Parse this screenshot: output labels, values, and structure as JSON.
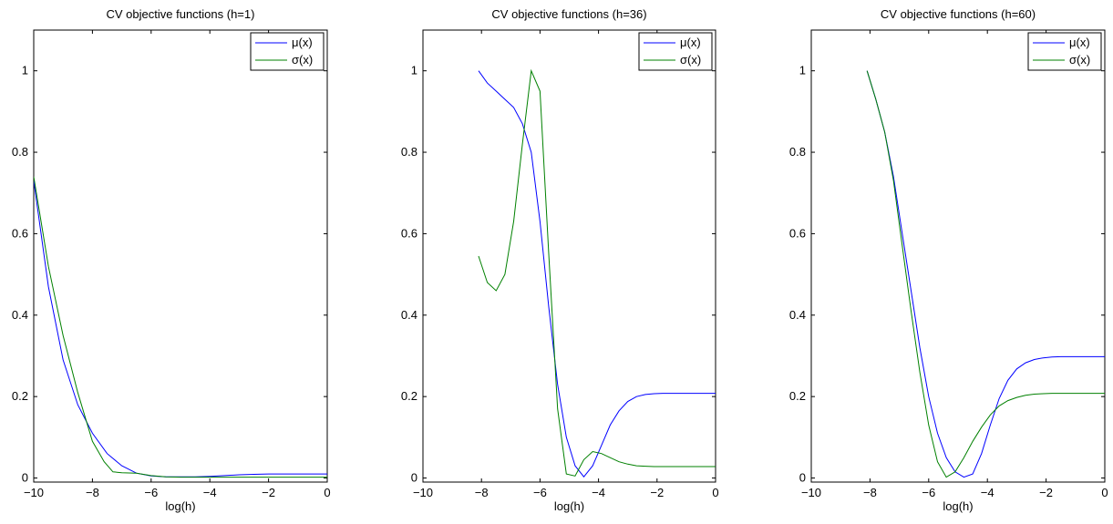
{
  "figure": {
    "colors": {
      "mu": "#0000ff",
      "sigma": "#008000",
      "axes": "#000000",
      "background": "#ffffff"
    }
  },
  "chart_data": [
    {
      "type": "line",
      "title": "CV objective functions (h=1)",
      "xlabel": "log(h)",
      "ylabel": "",
      "xlim": [
        -10,
        0
      ],
      "ylim": [
        -0.01,
        1.1
      ],
      "xticks": [
        -10,
        -8,
        -6,
        -4,
        -2,
        0
      ],
      "xtick_labels": [
        "−10",
        "−8",
        "−6",
        "−4",
        "−2",
        "0"
      ],
      "yticks": [
        0,
        0.2,
        0.4,
        0.6,
        0.8,
        1
      ],
      "ytick_labels": [
        "0",
        "0.2",
        "0.4",
        "0.6",
        "0.8",
        "1"
      ],
      "legend": {
        "position": "top-right",
        "entries": [
          "μ(x)",
          "σ(x)"
        ]
      },
      "series": [
        {
          "name": "μ(x)",
          "color": "#0000ff",
          "x": [
            -10,
            -9.5,
            -9,
            -8.5,
            -8,
            -7.5,
            -7,
            -6.5,
            -6,
            -5.5,
            -5,
            -4.5,
            -4,
            -3.5,
            -3,
            -2.5,
            -2,
            -1.5,
            -1,
            -0.5,
            0
          ],
          "y": [
            0.73,
            0.47,
            0.29,
            0.18,
            0.11,
            0.06,
            0.03,
            0.012,
            0.005,
            0.003,
            0.003,
            0.003,
            0.004,
            0.006,
            0.008,
            0.009,
            0.01,
            0.01,
            0.01,
            0.01,
            0.01
          ]
        },
        {
          "name": "σ(x)",
          "color": "#008000",
          "x": [
            -10,
            -9.5,
            -9,
            -8.5,
            -8,
            -7.6,
            -7.3,
            -7,
            -6.5,
            -6,
            -5.5,
            -5,
            -4.5,
            -4,
            -3.5,
            -3,
            -2.5,
            -2,
            -1.5,
            -1,
            -0.5,
            0
          ],
          "y": [
            0.74,
            0.52,
            0.35,
            0.21,
            0.09,
            0.04,
            0.015,
            0.013,
            0.012,
            0.006,
            0.003,
            0.002,
            0.002,
            0.002,
            0.002,
            0.002,
            0.002,
            0.002,
            0.002,
            0.002,
            0.002,
            0.002
          ]
        }
      ]
    },
    {
      "type": "line",
      "title": "CV objective functions (h=36)",
      "xlabel": "log(h)",
      "ylabel": "",
      "xlim": [
        -10,
        0
      ],
      "ylim": [
        -0.01,
        1.1
      ],
      "xticks": [
        -10,
        -8,
        -6,
        -4,
        -2,
        0
      ],
      "xtick_labels": [
        "−10",
        "−8",
        "−6",
        "−4",
        "−2",
        "0"
      ],
      "yticks": [
        0,
        0.2,
        0.4,
        0.6,
        0.8,
        1
      ],
      "ytick_labels": [
        "0",
        "0.2",
        "0.4",
        "0.6",
        "0.8",
        "1"
      ],
      "legend": {
        "position": "top-right",
        "entries": [
          "μ(x)",
          "σ(x)"
        ]
      },
      "series": [
        {
          "name": "μ(x)",
          "color": "#0000ff",
          "x": [
            -8.1,
            -7.8,
            -7.5,
            -7.2,
            -6.9,
            -6.6,
            -6.3,
            -6.0,
            -5.7,
            -5.4,
            -5.1,
            -4.8,
            -4.5,
            -4.2,
            -3.9,
            -3.6,
            -3.3,
            -3.0,
            -2.7,
            -2.4,
            -2.1,
            -1.8,
            -1.5,
            -1.2,
            -0.9,
            -0.6,
            -0.3,
            0
          ],
          "y": [
            1.0,
            0.97,
            0.95,
            0.93,
            0.91,
            0.87,
            0.8,
            0.63,
            0.42,
            0.23,
            0.1,
            0.03,
            0.003,
            0.03,
            0.08,
            0.13,
            0.165,
            0.188,
            0.2,
            0.205,
            0.207,
            0.208,
            0.208,
            0.208,
            0.208,
            0.208,
            0.208,
            0.208
          ]
        },
        {
          "name": "σ(x)",
          "color": "#008000",
          "x": [
            -8.1,
            -7.8,
            -7.5,
            -7.2,
            -6.9,
            -6.6,
            -6.3,
            -6.0,
            -5.7,
            -5.4,
            -5.1,
            -4.8,
            -4.5,
            -4.2,
            -3.9,
            -3.6,
            -3.3,
            -3.0,
            -2.7,
            -2.4,
            -2.1,
            -1.8,
            -1.5,
            -1.2,
            -0.9,
            -0.6,
            -0.3,
            0
          ],
          "y": [
            0.545,
            0.48,
            0.46,
            0.5,
            0.63,
            0.82,
            1.0,
            0.95,
            0.55,
            0.17,
            0.01,
            0.005,
            0.045,
            0.065,
            0.06,
            0.05,
            0.04,
            0.034,
            0.03,
            0.029,
            0.028,
            0.028,
            0.028,
            0.028,
            0.028,
            0.028,
            0.028,
            0.028
          ]
        }
      ]
    },
    {
      "type": "line",
      "title": "CV objective functions (h=60)",
      "xlabel": "log(h)",
      "ylabel": "",
      "xlim": [
        -10,
        0
      ],
      "ylim": [
        -0.01,
        1.1
      ],
      "xticks": [
        -10,
        -8,
        -6,
        -4,
        -2,
        0
      ],
      "xtick_labels": [
        "−10",
        "−8",
        "−6",
        "−4",
        "−2",
        "0"
      ],
      "yticks": [
        0,
        0.2,
        0.4,
        0.6,
        0.8,
        1
      ],
      "ytick_labels": [
        "0",
        "0.2",
        "0.4",
        "0.6",
        "0.8",
        "1"
      ],
      "legend": {
        "position": "top-right",
        "entries": [
          "μ(x)",
          "σ(x)"
        ]
      },
      "series": [
        {
          "name": "μ(x)",
          "color": "#0000ff",
          "x": [
            -8.1,
            -7.8,
            -7.5,
            -7.2,
            -6.9,
            -6.6,
            -6.3,
            -6.0,
            -5.7,
            -5.4,
            -5.1,
            -4.8,
            -4.5,
            -4.2,
            -3.9,
            -3.6,
            -3.3,
            -3.0,
            -2.7,
            -2.4,
            -2.1,
            -1.8,
            -1.5,
            -1.2,
            -0.9,
            -0.6,
            -0.3,
            0
          ],
          "y": [
            1.0,
            0.93,
            0.85,
            0.74,
            0.6,
            0.46,
            0.32,
            0.2,
            0.11,
            0.05,
            0.015,
            0.002,
            0.01,
            0.06,
            0.13,
            0.195,
            0.24,
            0.268,
            0.283,
            0.291,
            0.295,
            0.297,
            0.298,
            0.298,
            0.298,
            0.298,
            0.298,
            0.298
          ]
        },
        {
          "name": "σ(x)",
          "color": "#008000",
          "x": [
            -8.1,
            -7.8,
            -7.5,
            -7.2,
            -6.9,
            -6.6,
            -6.3,
            -6.0,
            -5.7,
            -5.4,
            -5.1,
            -4.8,
            -4.5,
            -4.2,
            -3.9,
            -3.6,
            -3.3,
            -3.0,
            -2.7,
            -2.4,
            -2.1,
            -1.8,
            -1.5,
            -1.2,
            -0.9,
            -0.6,
            -0.3,
            0
          ],
          "y": [
            1.0,
            0.93,
            0.85,
            0.73,
            0.57,
            0.41,
            0.26,
            0.13,
            0.04,
            0.002,
            0.015,
            0.05,
            0.09,
            0.125,
            0.155,
            0.177,
            0.19,
            0.198,
            0.203,
            0.206,
            0.207,
            0.208,
            0.208,
            0.208,
            0.208,
            0.208,
            0.208,
            0.208
          ]
        }
      ]
    }
  ]
}
